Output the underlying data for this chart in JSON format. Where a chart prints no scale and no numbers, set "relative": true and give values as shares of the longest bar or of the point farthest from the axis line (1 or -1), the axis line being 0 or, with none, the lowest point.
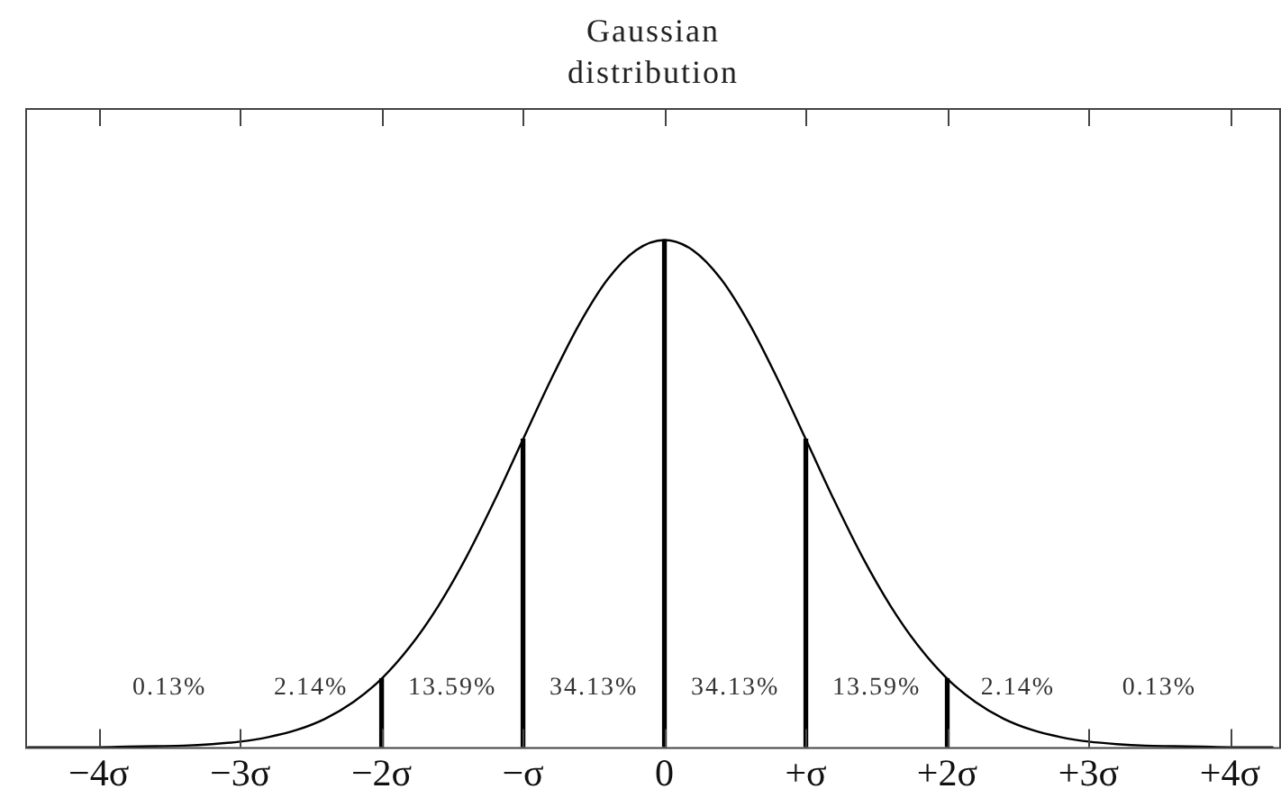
{
  "chart_data": {
    "type": "line",
    "title": "Gaussian distribution",
    "relative": true,
    "marker": "none",
    "line_style": "solid",
    "xlim": [
      -4.52,
      4.36
    ],
    "xticks": [
      {
        "value": -4,
        "label": "−4σ"
      },
      {
        "value": -3,
        "label": "−3σ"
      },
      {
        "value": -2,
        "label": "−2σ"
      },
      {
        "value": -1,
        "label": "−σ"
      },
      0,
      {
        "value": 1,
        "label": "+σ"
      },
      {
        "value": 2,
        "label": "+2σ"
      },
      {
        "value": 3,
        "label": "+3σ"
      },
      {
        "value": 4,
        "label": "+4σ"
      }
    ],
    "series": [
      {
        "color": "#000000",
        "x": [
          -4.5,
          -4.4,
          -4.2,
          -4.0,
          -3.8,
          -3.6,
          -3.4,
          -3.2,
          -3.0,
          -2.8,
          -2.6,
          -2.4,
          -2.2,
          -2.0,
          -1.8,
          -1.6,
          -1.4,
          -1.2,
          -1.0,
          -0.8,
          -0.6,
          -0.4,
          -0.2,
          0,
          0.2,
          0.4,
          0.6,
          0.8,
          1.0,
          1.2,
          1.4,
          1.6,
          1.8,
          2.0,
          2.2,
          2.4,
          2.6,
          2.8,
          3.0,
          3.2,
          3.4,
          3.6,
          3.8,
          4.0,
          4.2,
          4.3
        ],
        "values": [
          0,
          0,
          0,
          0,
          0.001,
          0.002,
          0.003,
          0.006,
          0.011,
          0.02,
          0.034,
          0.056,
          0.089,
          0.135,
          0.198,
          0.278,
          0.375,
          0.487,
          0.607,
          0.726,
          0.835,
          0.923,
          0.98,
          1,
          0.98,
          0.923,
          0.835,
          0.726,
          0.607,
          0.487,
          0.375,
          0.278,
          0.198,
          0.135,
          0.089,
          0.056,
          0.034,
          0.02,
          0.011,
          0.006,
          0.003,
          0.002,
          0.001,
          0,
          0,
          0
        ]
      },
      {
        "type": "bar",
        "color": "#000000",
        "x": [
          -2,
          -1,
          0,
          1,
          2
        ],
        "values": [
          0.135,
          0.607,
          1,
          0.607,
          0.135
        ]
      }
    ],
    "annotations": [
      "0.13%",
      "2.14%",
      "13.59%",
      "34.13%",
      "34.13%",
      "13.59%",
      "2.14%",
      "0.13%"
    ]
  }
}
